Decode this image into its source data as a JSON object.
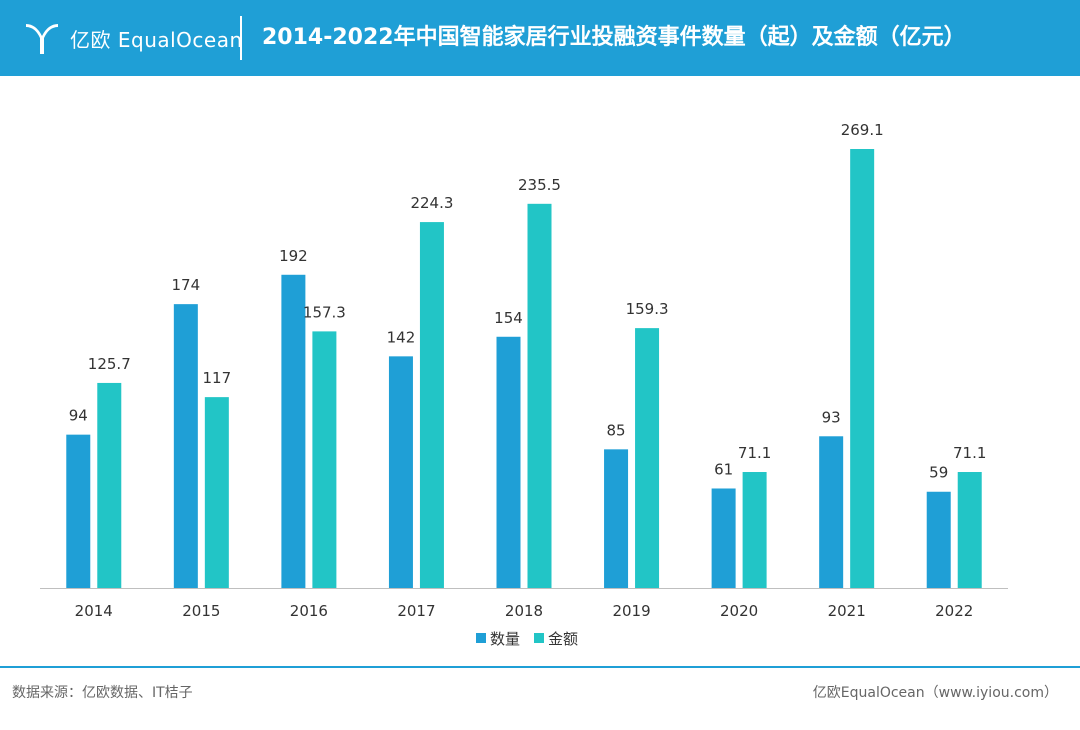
{
  "header": {
    "brand": "亿欧 EqualOcean",
    "title": "2014-2022年中国智能家居行业投融资事件数量（起）及金额（亿元）"
  },
  "colors": {
    "header_bg": "#1f9fd6",
    "series_count": "#1f9fd6",
    "series_amount": "#22c5c6"
  },
  "chart_data": {
    "type": "bar",
    "title": "2014-2022年中国智能家居行业投融资事件数量（起）及金额（亿元）",
    "categories": [
      "2014",
      "2015",
      "2016",
      "2017",
      "2018",
      "2019",
      "2020",
      "2021",
      "2022"
    ],
    "series": [
      {
        "name": "数量",
        "values": [
          94,
          174,
          192,
          142,
          154,
          85,
          61,
          93,
          59
        ],
        "labels": [
          "94",
          "174",
          "192",
          "142",
          "154",
          "85",
          "61",
          "93",
          "59"
        ]
      },
      {
        "name": "金额",
        "values": [
          125.7,
          117,
          157.3,
          224.3,
          235.5,
          159.3,
          71.1,
          269.1,
          71.1
        ],
        "labels": [
          "125.7",
          "117",
          "157.3",
          "224.3",
          "235.5",
          "159.3",
          "71.1",
          "269.1",
          "71.1"
        ]
      }
    ],
    "ylim": [
      0,
      269.1
    ],
    "grid": false,
    "legend": "bottom-center"
  },
  "footer": {
    "source": "数据来源：亿欧数据、IT桔子",
    "site": "亿欧EqualOcean（www.iyiou.com）"
  }
}
